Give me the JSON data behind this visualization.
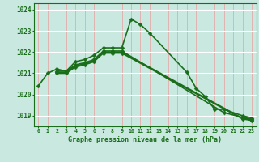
{
  "title": "Graphe pression niveau de la mer (hPa)",
  "bg_color": "#c8e8e0",
  "grid_color_v": "#e8a0a0",
  "grid_color_h": "#ffffff",
  "line_color": "#1a6e1a",
  "xlim": [
    -0.5,
    23.5
  ],
  "ylim": [
    1018.5,
    1024.3
  ],
  "yticks": [
    1019,
    1020,
    1021,
    1022,
    1023,
    1024
  ],
  "xticks": [
    0,
    1,
    2,
    3,
    4,
    5,
    6,
    7,
    8,
    9,
    10,
    11,
    12,
    13,
    14,
    15,
    16,
    17,
    18,
    19,
    20,
    21,
    22,
    23
  ],
  "series": [
    {
      "x": [
        0,
        1,
        2,
        3,
        4,
        5,
        6,
        7,
        8,
        9,
        10,
        11,
        12,
        16,
        17,
        18,
        19,
        20,
        22,
        23
      ],
      "y": [
        1020.4,
        1021.0,
        1021.2,
        1021.1,
        1021.55,
        1021.65,
        1021.85,
        1022.2,
        1022.2,
        1022.2,
        1023.55,
        1023.3,
        1022.9,
        1021.05,
        1020.3,
        1019.9,
        1019.3,
        1019.3,
        1019.0,
        1018.9
      ],
      "lw": 1.2
    },
    {
      "x": [
        2,
        3,
        4,
        5,
        6,
        7,
        8,
        9,
        20,
        22,
        23
      ],
      "y": [
        1021.1,
        1021.1,
        1021.4,
        1021.5,
        1021.65,
        1022.05,
        1022.05,
        1022.05,
        1019.15,
        1018.92,
        1018.85
      ],
      "lw": 1.2
    },
    {
      "x": [
        2,
        3,
        4,
        5,
        6,
        7,
        8,
        9,
        22,
        23
      ],
      "y": [
        1021.05,
        1021.05,
        1021.35,
        1021.45,
        1021.6,
        1022.0,
        1022.0,
        1022.0,
        1018.88,
        1018.82
      ],
      "lw": 1.2
    },
    {
      "x": [
        2,
        3,
        4,
        5,
        6,
        7,
        8,
        9,
        22,
        23
      ],
      "y": [
        1021.0,
        1021.0,
        1021.3,
        1021.4,
        1021.55,
        1021.95,
        1021.95,
        1021.95,
        1018.85,
        1018.78
      ],
      "lw": 1.2
    }
  ]
}
